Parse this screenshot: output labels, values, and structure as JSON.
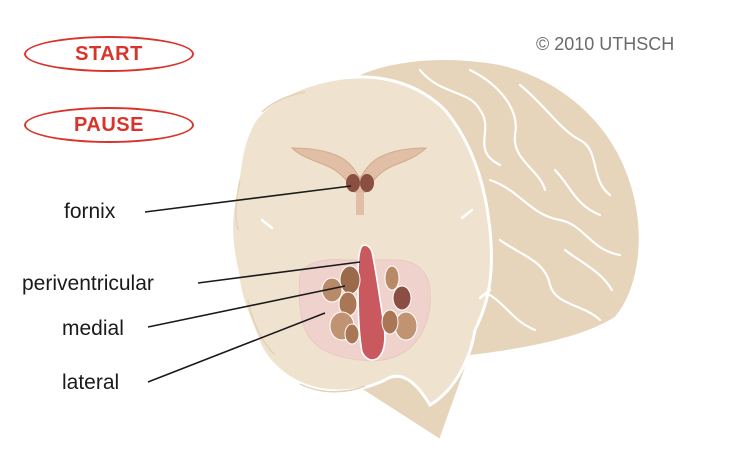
{
  "buttons": {
    "start_label": "START",
    "pause_label": "PAUSE"
  },
  "copyright": "© 2010 UTHSCH",
  "labels": {
    "fornix": "fornix",
    "periventricular": "periventricular",
    "medial": "medial",
    "lateral": "lateral"
  },
  "colors": {
    "brain_fill": "#efe2cf",
    "brain_outline": "#ffffff",
    "gyri_fill": "#e2cfb4",
    "nucleus_brown": "#9b6a4a",
    "ventricle_pink": "#c9585f",
    "button_red": "#d9342b"
  }
}
